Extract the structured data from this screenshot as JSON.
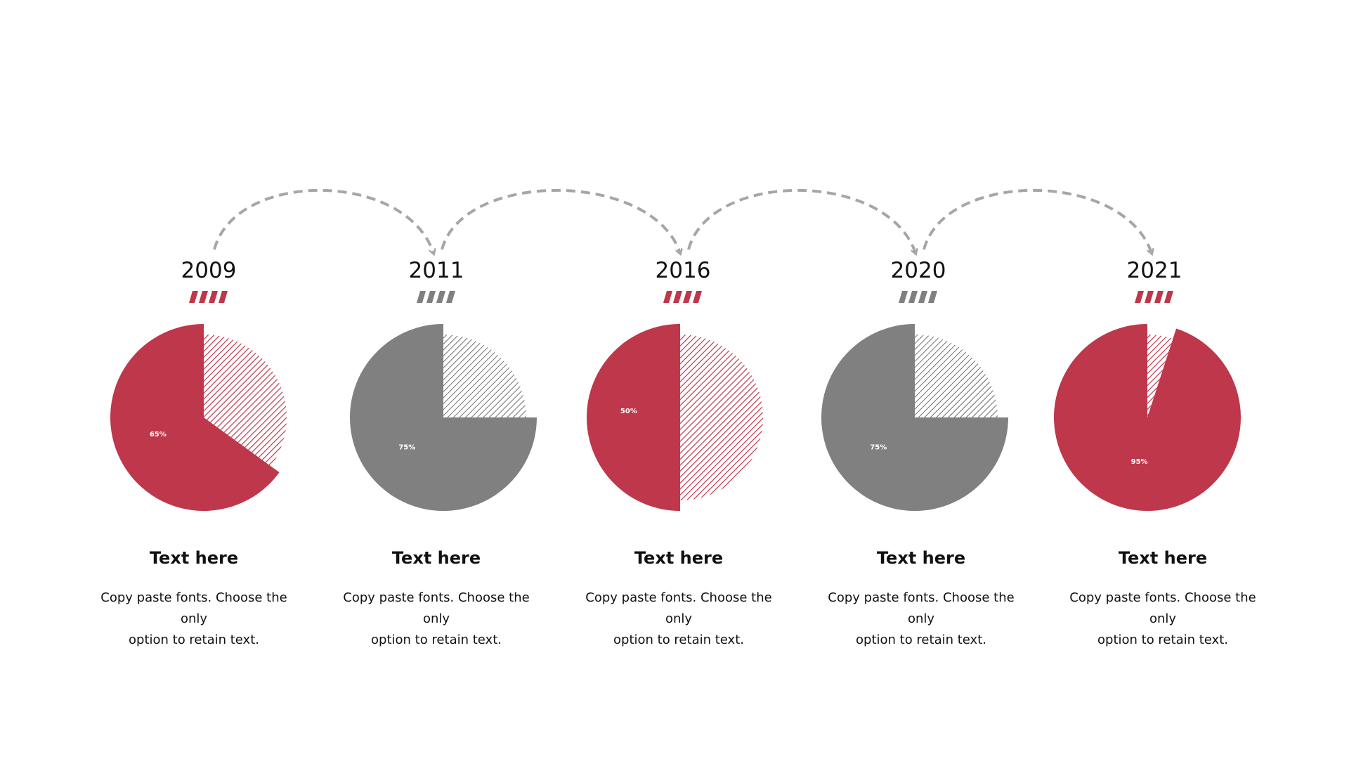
{
  "colors": {
    "red": "#BE374B",
    "gray": "#808080",
    "arrow": "#A6A6A6",
    "hatch": "#222222"
  },
  "chart_data": [
    {
      "type": "pie",
      "year": "2009",
      "value_label": "65%",
      "values": [
        65,
        35
      ],
      "color": "red",
      "heading": "Text here",
      "description": [
        "Copy paste fonts. Choose the only",
        "option to retain text."
      ]
    },
    {
      "type": "pie",
      "year": "2011",
      "value_label": "75%",
      "values": [
        75,
        25
      ],
      "color": "gray",
      "heading": "Text here",
      "description": [
        "Copy paste fonts. Choose the only",
        "option to retain text."
      ]
    },
    {
      "type": "pie",
      "year": "2016",
      "value_label": "50%",
      "values": [
        50,
        50
      ],
      "color": "red",
      "heading": "Text here",
      "description": [
        "Copy paste fonts. Choose the only",
        "option to retain text."
      ]
    },
    {
      "type": "pie",
      "year": "2020",
      "value_label": "75%",
      "values": [
        75,
        25
      ],
      "color": "gray",
      "heading": "Text here",
      "description": [
        "Copy paste fonts. Choose the only",
        "option to retain text."
      ]
    },
    {
      "type": "pie",
      "year": "2021",
      "value_label": "95%",
      "values": [
        95,
        5
      ],
      "color": "red",
      "heading": "Text here",
      "description": [
        "Copy paste fonts. Choose the only",
        "option to retain text."
      ]
    }
  ]
}
